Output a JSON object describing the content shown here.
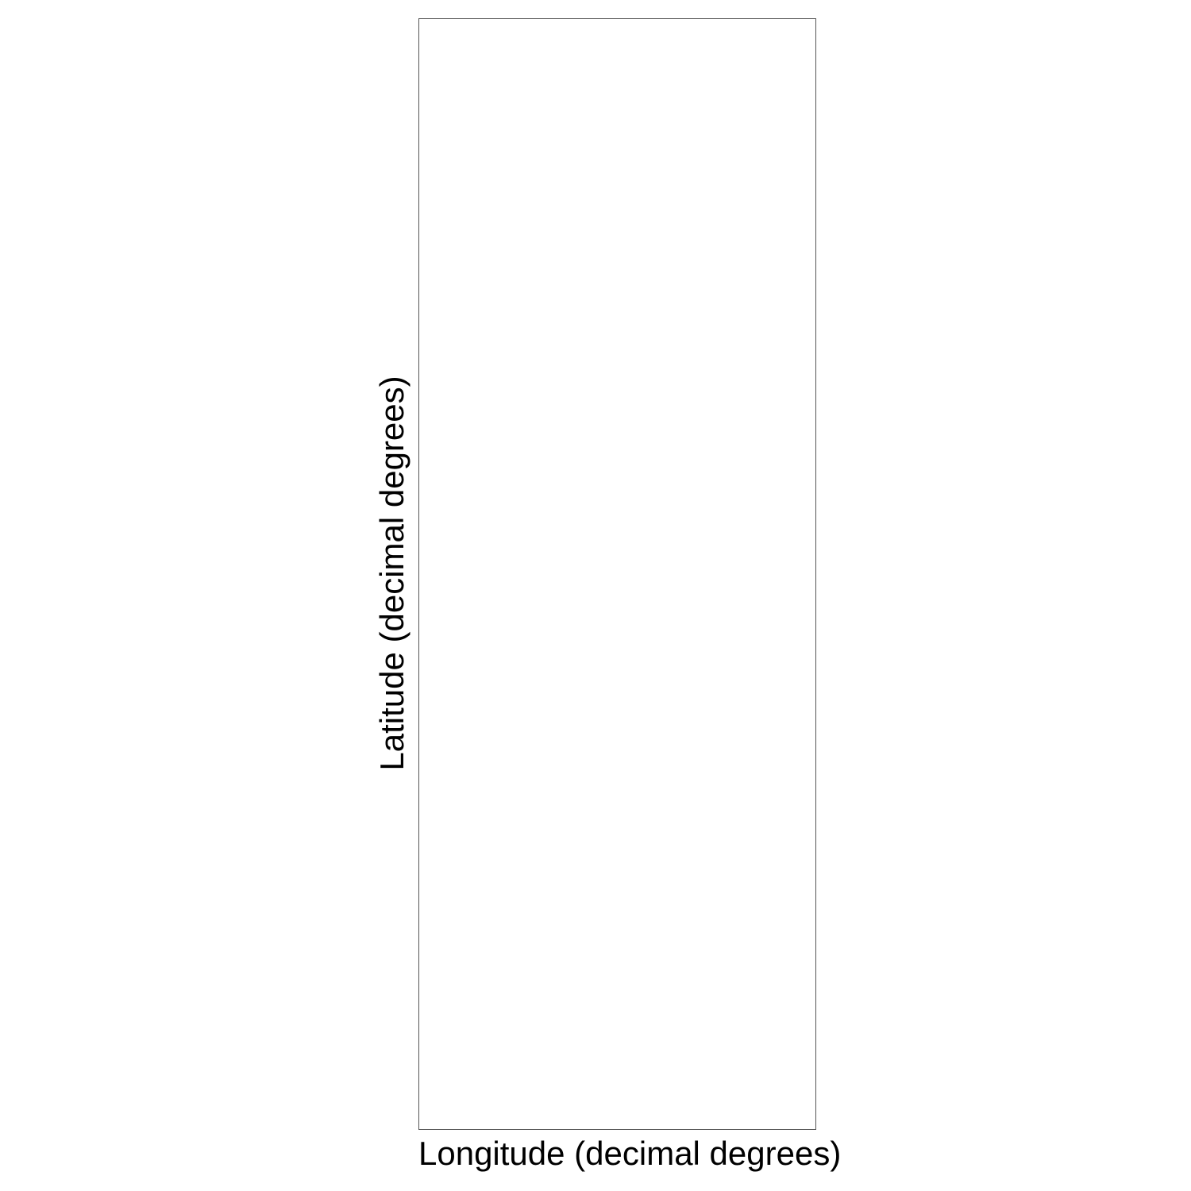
{
  "chart_data": {
    "type": "scatter",
    "title": "",
    "xlabel": "Longitude (decimal degrees)",
    "ylabel": "Latitude (decimal degrees)",
    "series": [],
    "grid": false,
    "legend": "none"
  },
  "colors": {
    "frame": "#555555",
    "background": "#ffffff",
    "text": "#000000"
  }
}
